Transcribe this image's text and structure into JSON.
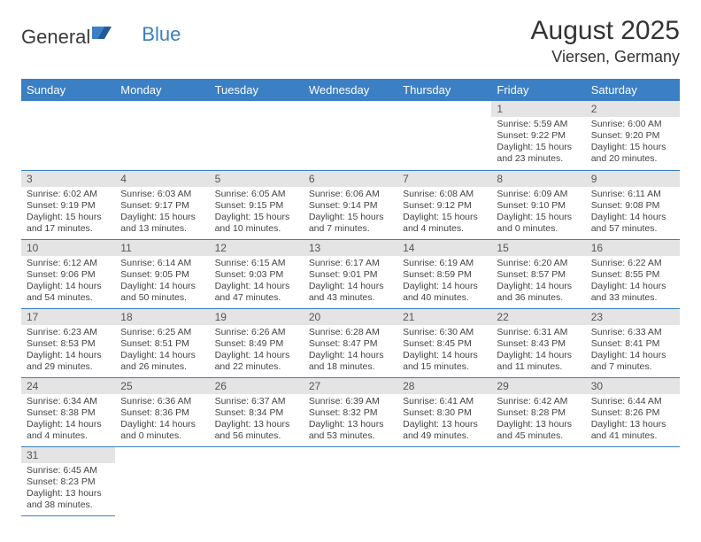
{
  "logo": {
    "general": "General",
    "blue": "Blue"
  },
  "title": "August 2025",
  "location": "Viersen, Germany",
  "colors": {
    "header_bg": "#3b7fc4",
    "header_fg": "#ffffff",
    "daynum_bg": "#e4e4e4",
    "border": "#3b7fc4",
    "text": "#333333"
  },
  "weekdays": [
    "Sunday",
    "Monday",
    "Tuesday",
    "Wednesday",
    "Thursday",
    "Friday",
    "Saturday"
  ],
  "weeks": [
    [
      null,
      null,
      null,
      null,
      null,
      {
        "n": "1",
        "sr": "Sunrise: 5:59 AM",
        "ss": "Sunset: 9:22 PM",
        "d1": "Daylight: 15 hours",
        "d2": "and 23 minutes."
      },
      {
        "n": "2",
        "sr": "Sunrise: 6:00 AM",
        "ss": "Sunset: 9:20 PM",
        "d1": "Daylight: 15 hours",
        "d2": "and 20 minutes."
      }
    ],
    [
      {
        "n": "3",
        "sr": "Sunrise: 6:02 AM",
        "ss": "Sunset: 9:19 PM",
        "d1": "Daylight: 15 hours",
        "d2": "and 17 minutes."
      },
      {
        "n": "4",
        "sr": "Sunrise: 6:03 AM",
        "ss": "Sunset: 9:17 PM",
        "d1": "Daylight: 15 hours",
        "d2": "and 13 minutes."
      },
      {
        "n": "5",
        "sr": "Sunrise: 6:05 AM",
        "ss": "Sunset: 9:15 PM",
        "d1": "Daylight: 15 hours",
        "d2": "and 10 minutes."
      },
      {
        "n": "6",
        "sr": "Sunrise: 6:06 AM",
        "ss": "Sunset: 9:14 PM",
        "d1": "Daylight: 15 hours",
        "d2": "and 7 minutes."
      },
      {
        "n": "7",
        "sr": "Sunrise: 6:08 AM",
        "ss": "Sunset: 9:12 PM",
        "d1": "Daylight: 15 hours",
        "d2": "and 4 minutes."
      },
      {
        "n": "8",
        "sr": "Sunrise: 6:09 AM",
        "ss": "Sunset: 9:10 PM",
        "d1": "Daylight: 15 hours",
        "d2": "and 0 minutes."
      },
      {
        "n": "9",
        "sr": "Sunrise: 6:11 AM",
        "ss": "Sunset: 9:08 PM",
        "d1": "Daylight: 14 hours",
        "d2": "and 57 minutes."
      }
    ],
    [
      {
        "n": "10",
        "sr": "Sunrise: 6:12 AM",
        "ss": "Sunset: 9:06 PM",
        "d1": "Daylight: 14 hours",
        "d2": "and 54 minutes."
      },
      {
        "n": "11",
        "sr": "Sunrise: 6:14 AM",
        "ss": "Sunset: 9:05 PM",
        "d1": "Daylight: 14 hours",
        "d2": "and 50 minutes."
      },
      {
        "n": "12",
        "sr": "Sunrise: 6:15 AM",
        "ss": "Sunset: 9:03 PM",
        "d1": "Daylight: 14 hours",
        "d2": "and 47 minutes."
      },
      {
        "n": "13",
        "sr": "Sunrise: 6:17 AM",
        "ss": "Sunset: 9:01 PM",
        "d1": "Daylight: 14 hours",
        "d2": "and 43 minutes."
      },
      {
        "n": "14",
        "sr": "Sunrise: 6:19 AM",
        "ss": "Sunset: 8:59 PM",
        "d1": "Daylight: 14 hours",
        "d2": "and 40 minutes."
      },
      {
        "n": "15",
        "sr": "Sunrise: 6:20 AM",
        "ss": "Sunset: 8:57 PM",
        "d1": "Daylight: 14 hours",
        "d2": "and 36 minutes."
      },
      {
        "n": "16",
        "sr": "Sunrise: 6:22 AM",
        "ss": "Sunset: 8:55 PM",
        "d1": "Daylight: 14 hours",
        "d2": "and 33 minutes."
      }
    ],
    [
      {
        "n": "17",
        "sr": "Sunrise: 6:23 AM",
        "ss": "Sunset: 8:53 PM",
        "d1": "Daylight: 14 hours",
        "d2": "and 29 minutes."
      },
      {
        "n": "18",
        "sr": "Sunrise: 6:25 AM",
        "ss": "Sunset: 8:51 PM",
        "d1": "Daylight: 14 hours",
        "d2": "and 26 minutes."
      },
      {
        "n": "19",
        "sr": "Sunrise: 6:26 AM",
        "ss": "Sunset: 8:49 PM",
        "d1": "Daylight: 14 hours",
        "d2": "and 22 minutes."
      },
      {
        "n": "20",
        "sr": "Sunrise: 6:28 AM",
        "ss": "Sunset: 8:47 PM",
        "d1": "Daylight: 14 hours",
        "d2": "and 18 minutes."
      },
      {
        "n": "21",
        "sr": "Sunrise: 6:30 AM",
        "ss": "Sunset: 8:45 PM",
        "d1": "Daylight: 14 hours",
        "d2": "and 15 minutes."
      },
      {
        "n": "22",
        "sr": "Sunrise: 6:31 AM",
        "ss": "Sunset: 8:43 PM",
        "d1": "Daylight: 14 hours",
        "d2": "and 11 minutes."
      },
      {
        "n": "23",
        "sr": "Sunrise: 6:33 AM",
        "ss": "Sunset: 8:41 PM",
        "d1": "Daylight: 14 hours",
        "d2": "and 7 minutes."
      }
    ],
    [
      {
        "n": "24",
        "sr": "Sunrise: 6:34 AM",
        "ss": "Sunset: 8:38 PM",
        "d1": "Daylight: 14 hours",
        "d2": "and 4 minutes."
      },
      {
        "n": "25",
        "sr": "Sunrise: 6:36 AM",
        "ss": "Sunset: 8:36 PM",
        "d1": "Daylight: 14 hours",
        "d2": "and 0 minutes."
      },
      {
        "n": "26",
        "sr": "Sunrise: 6:37 AM",
        "ss": "Sunset: 8:34 PM",
        "d1": "Daylight: 13 hours",
        "d2": "and 56 minutes."
      },
      {
        "n": "27",
        "sr": "Sunrise: 6:39 AM",
        "ss": "Sunset: 8:32 PM",
        "d1": "Daylight: 13 hours",
        "d2": "and 53 minutes."
      },
      {
        "n": "28",
        "sr": "Sunrise: 6:41 AM",
        "ss": "Sunset: 8:30 PM",
        "d1": "Daylight: 13 hours",
        "d2": "and 49 minutes."
      },
      {
        "n": "29",
        "sr": "Sunrise: 6:42 AM",
        "ss": "Sunset: 8:28 PM",
        "d1": "Daylight: 13 hours",
        "d2": "and 45 minutes."
      },
      {
        "n": "30",
        "sr": "Sunrise: 6:44 AM",
        "ss": "Sunset: 8:26 PM",
        "d1": "Daylight: 13 hours",
        "d2": "and 41 minutes."
      }
    ],
    [
      {
        "n": "31",
        "sr": "Sunrise: 6:45 AM",
        "ss": "Sunset: 8:23 PM",
        "d1": "Daylight: 13 hours",
        "d2": "and 38 minutes."
      },
      null,
      null,
      null,
      null,
      null,
      null
    ]
  ]
}
